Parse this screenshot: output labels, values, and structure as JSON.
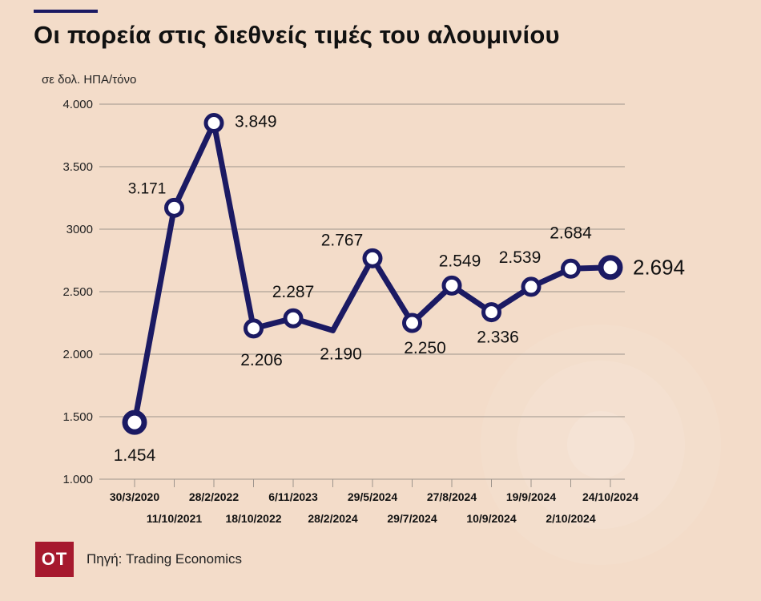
{
  "header": {
    "title": "Οι πορεία στις διεθνείς τιμές του αλουμινίου",
    "unit": "σε  δολ. ΗΠΑ/τόνο"
  },
  "footer": {
    "logo": "ΟΤ",
    "source": "Πηγή: Trading Economics"
  },
  "chart_data": {
    "type": "line",
    "ylim": [
      1000,
      4000
    ],
    "y_ticks": [
      {
        "value": 1000,
        "label": "1.000"
      },
      {
        "value": 1500,
        "label": "1.500"
      },
      {
        "value": 2000,
        "label": "2.000"
      },
      {
        "value": 2500,
        "label": "2.500"
      },
      {
        "value": 3000,
        "label": "3000"
      },
      {
        "value": 3500,
        "label": "3.500"
      },
      {
        "value": 4000,
        "label": "4.000"
      }
    ],
    "grid": true,
    "series": [
      {
        "color": "#1b1a63",
        "points": [
          {
            "x": "30/3/2020",
            "y": 1454,
            "label": "1.454",
            "marker": true
          },
          {
            "x": "11/10/2021",
            "y": 3171,
            "label": "3.171",
            "marker": true
          },
          {
            "x": "28/2/2022",
            "y": 3849,
            "label": "3.849",
            "marker": true
          },
          {
            "x": "18/10/2022",
            "y": 2206,
            "label": "2.206",
            "marker": true
          },
          {
            "x": "6/11/2023",
            "y": 2287,
            "label": "2.287",
            "marker": true
          },
          {
            "x": "28/2/2024",
            "y": 2190,
            "label": "2.190",
            "marker": false
          },
          {
            "x": "29/5/2024",
            "y": 2767,
            "label": "2.767",
            "marker": true
          },
          {
            "x": "29/7/2024",
            "y": 2250,
            "label": "2.250",
            "marker": true
          },
          {
            "x": "27/8/2024",
            "y": 2549,
            "label": "2.549",
            "marker": true
          },
          {
            "x": "10/9/2024",
            "y": 2336,
            "label": "2.336",
            "marker": true
          },
          {
            "x": "19/9/2024",
            "y": 2539,
            "label": "2.539",
            "marker": true
          },
          {
            "x": "2/10/2024",
            "y": 2684,
            "label": "2.684",
            "marker": true
          },
          {
            "x": "24/10/2024",
            "y": 2694,
            "label": "2.694",
            "marker": true
          }
        ]
      }
    ]
  }
}
